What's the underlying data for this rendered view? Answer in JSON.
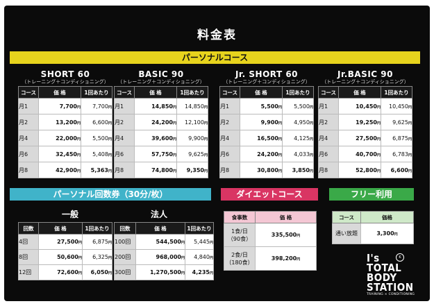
{
  "title": "料金表",
  "personal": {
    "header": "パーソナルコース",
    "courses": [
      {
        "name": "SHORT 60",
        "sub": "（トレーニング＋コンディショニング）",
        "rows": [
          [
            "月1",
            "7,700",
            "7,700"
          ],
          [
            "月2",
            "13,200",
            "6,600"
          ],
          [
            "月4",
            "22,000",
            "5,500"
          ],
          [
            "月6",
            "32,450",
            "5,408"
          ],
          [
            "月8",
            "42,900",
            "5,363"
          ]
        ]
      },
      {
        "name": "BASIC 90",
        "sub": "（トレーニング＋コンディショニング）",
        "rows": [
          [
            "月1",
            "14,850",
            "14,850"
          ],
          [
            "月2",
            "24,200",
            "12,100"
          ],
          [
            "月4",
            "39,600",
            "9,900"
          ],
          [
            "月6",
            "57,750",
            "9,625"
          ],
          [
            "月8",
            "74,800",
            "9,350"
          ]
        ]
      },
      {
        "name": "Jr. SHORT 60",
        "sub": "（トレーニング＋コンディショニング）",
        "rows": [
          [
            "月1",
            "5,500",
            "5,500"
          ],
          [
            "月2",
            "9,900",
            "4,950"
          ],
          [
            "月4",
            "16,500",
            "4,125"
          ],
          [
            "月6",
            "24,200",
            "4,033"
          ],
          [
            "月8",
            "30,800",
            "3,850"
          ]
        ]
      },
      {
        "name": "Jr.BASIC 90",
        "sub": "（トレーニング＋コンディショニング）",
        "rows": [
          [
            "月1",
            "10,450",
            "10,450"
          ],
          [
            "月2",
            "19,250",
            "9,625"
          ],
          [
            "月4",
            "27,500",
            "6,875"
          ],
          [
            "月6",
            "40,700",
            "6,783"
          ],
          [
            "月8",
            "52,800",
            "6,600"
          ]
        ]
      }
    ]
  },
  "ticket": {
    "header": "パーソナル回数券（30分/枚）",
    "general": {
      "label": "一般",
      "rows": [
        [
          "4回",
          "27,500",
          "6,875"
        ],
        [
          "8回",
          "50,600",
          "6,325"
        ],
        [
          "12回",
          "72,600",
          "6,050"
        ]
      ]
    },
    "corporate": {
      "label": "法人",
      "rows": [
        [
          "100回",
          "544,500",
          "5,445"
        ],
        [
          "200回",
          "968,000",
          "4,840"
        ],
        [
          "300回",
          "1,270,500",
          "4,235"
        ]
      ]
    }
  },
  "diet": {
    "header": "ダイエットコース",
    "col1": "食事数",
    "col2": "価 格",
    "rows": [
      {
        "l1": "1食/日",
        "l2": "（90食）",
        "price": "335,500"
      },
      {
        "l1": "2食/日",
        "l2": "（180食）",
        "price": "398,200"
      }
    ]
  },
  "free": {
    "header": "フリー利用",
    "col1": "コース",
    "col2": "価格",
    "row": {
      "label": "通い放題",
      "price": "3,300"
    }
  },
  "table_headers": {
    "course": "コース",
    "times": "回数",
    "price": "価 格",
    "per": "1回あたり"
  },
  "yen": "円",
  "logo": {
    "l1": "I's",
    "l2": "TOTAL",
    "l3": "BODY",
    "l4": "STATION",
    "sub": "TRAINING × CONDITIONING",
    "badge": "K"
  }
}
